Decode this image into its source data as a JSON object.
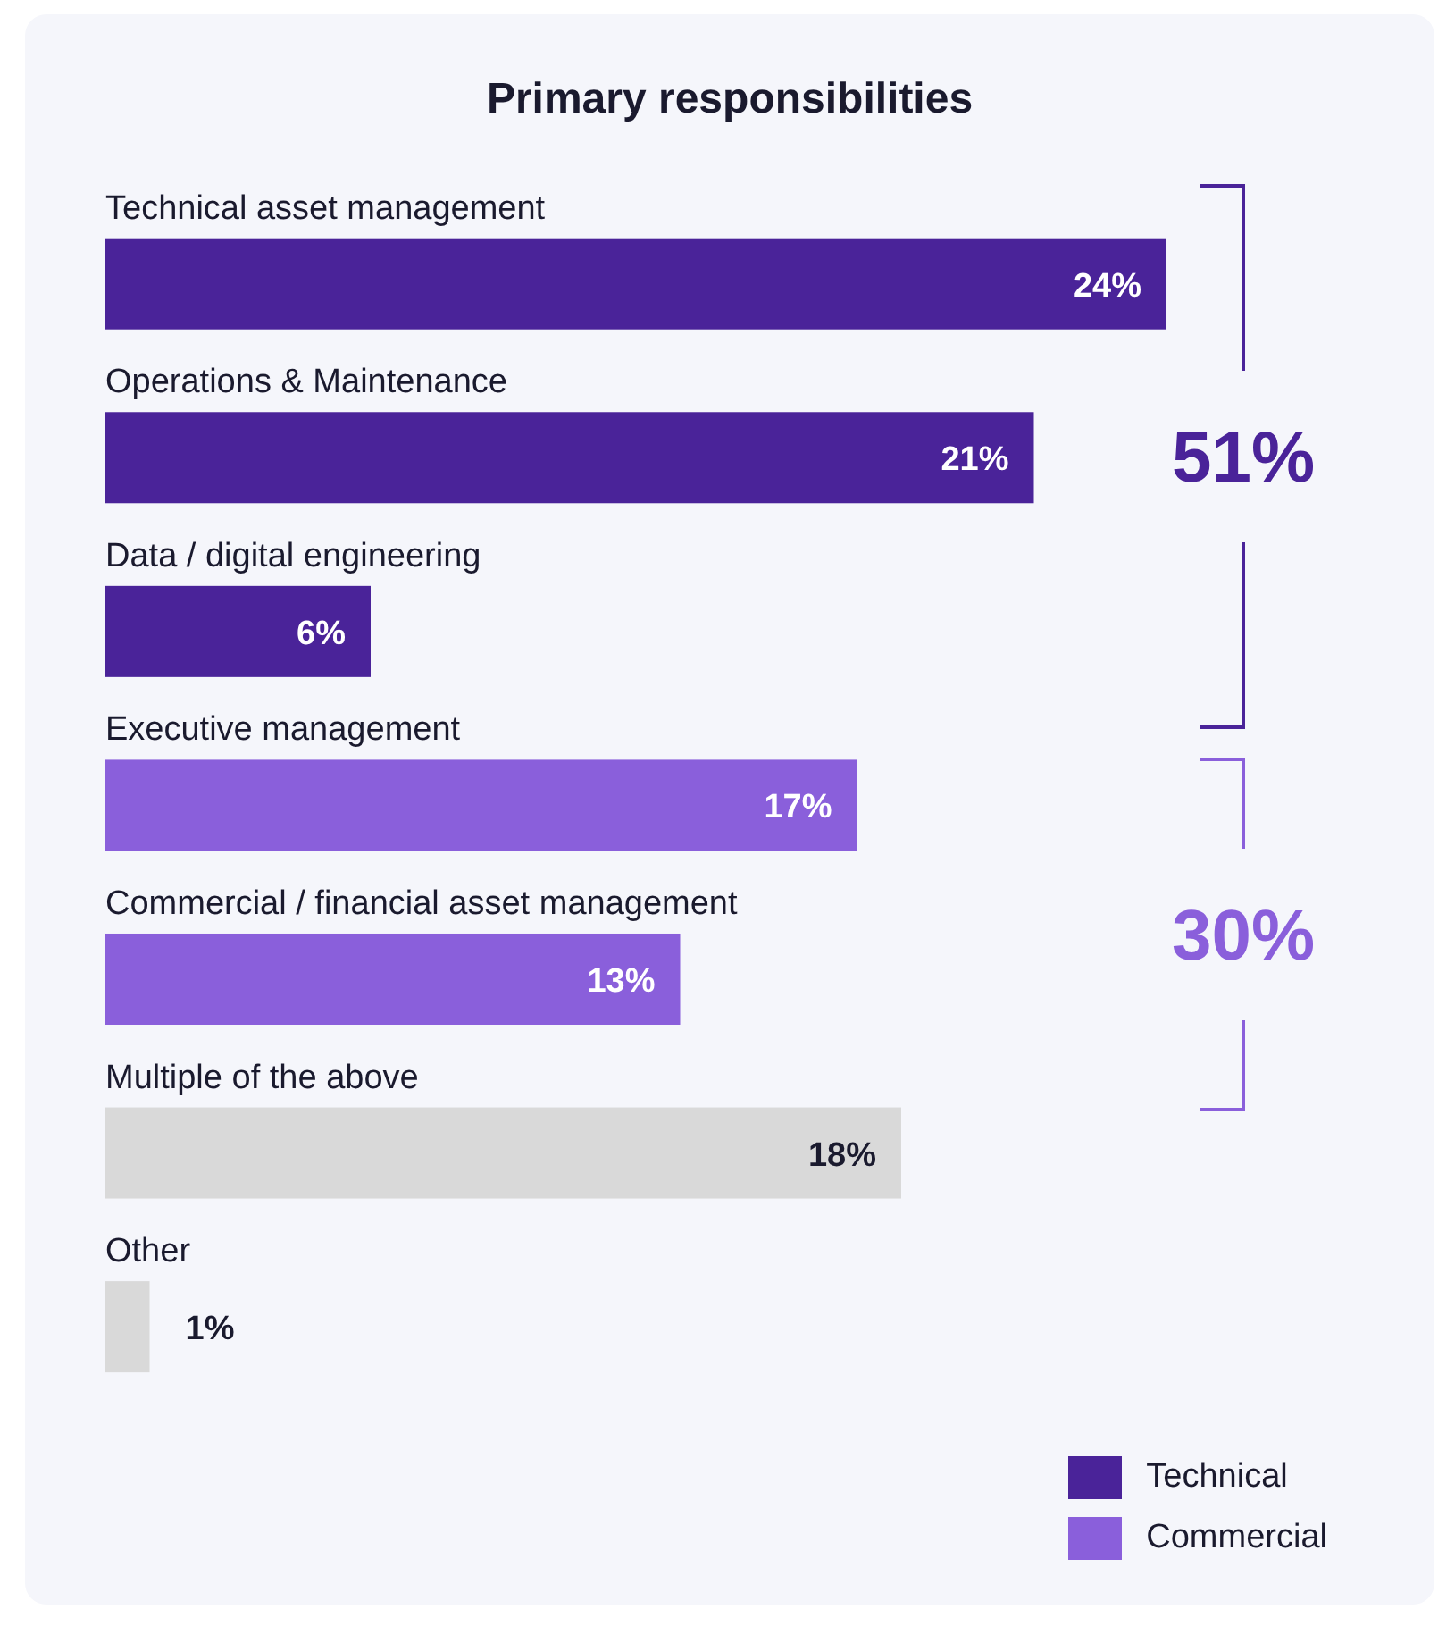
{
  "chart_data": {
    "type": "bar",
    "orientation": "horizontal",
    "stacked": true,
    "title": "Primary responsibilities",
    "categories": [
      "Technical asset management",
      "Operations & Maintenance",
      "Data / digital engineering",
      "Executive management",
      "Commercial / financial asset management",
      "Multiple of the above",
      "Other"
    ],
    "series": [
      {
        "name": "Technical",
        "color": "#4a2399",
        "values": [
          24,
          21,
          6,
          null,
          null,
          null,
          null
        ],
        "value_labels": [
          "24%",
          "21%",
          "6%",
          null,
          null,
          null,
          null
        ]
      },
      {
        "name": "Commercial",
        "color": "#8a5fdb",
        "values": [
          null,
          null,
          null,
          17,
          13,
          null,
          null
        ],
        "value_labels": [
          null,
          null,
          null,
          "17%",
          "13%",
          null,
          null
        ]
      },
      {
        "color": "#d9d9d9",
        "values": [
          null,
          null,
          null,
          null,
          null,
          18,
          1
        ],
        "value_labels": [
          null,
          null,
          null,
          null,
          null,
          "18%",
          "1%"
        ]
      }
    ],
    "annotations": [
      "51%",
      "30%"
    ],
    "legend": "bottom right"
  }
}
